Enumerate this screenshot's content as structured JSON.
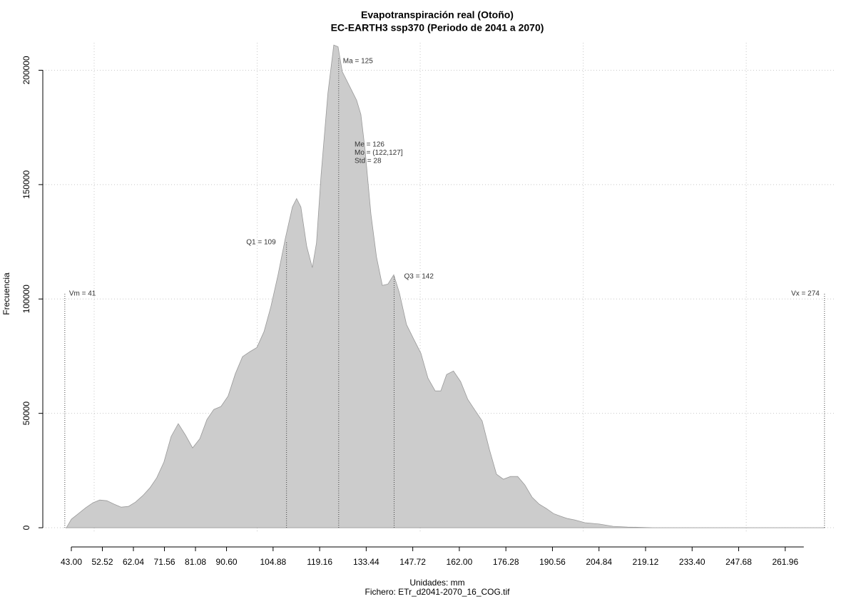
{
  "chart_data": {
    "type": "area",
    "title": "Evapotranspiración real (Otoño)",
    "subtitle": "EC-EARTH3 ssp370 (Periodo de 2041 a 2070)",
    "x_label": "Unidades: mm",
    "caption": "Fichero: ETr_d2041-2070_16_COG.tif",
    "y_label": "Frecuencia",
    "color": "#cccccc",
    "x": [
      41.5,
      43.0,
      45.2,
      47.4,
      49.6,
      51.7,
      53.9,
      56.1,
      58.3,
      60.5,
      62.7,
      64.9,
      67.1,
      69.2,
      71.4,
      73.6,
      75.8,
      78.0,
      80.2,
      82.4,
      84.6,
      86.7,
      88.9,
      91.1,
      93.3,
      95.5,
      97.7,
      99.9,
      102.1,
      104.2,
      106.4,
      108.6,
      110.8,
      112.1,
      113.4,
      115.2,
      116.9,
      118.2,
      119.6,
      121.7,
      123.5,
      124.8,
      126.1,
      128.3,
      130.5,
      131.8,
      133.1,
      134.9,
      136.6,
      138.4,
      140.1,
      141.9,
      143.6,
      145.8,
      148.0,
      150.2,
      152.4,
      154.6,
      156.3,
      158.1,
      160.2,
      162.4,
      164.6,
      166.8,
      169.0,
      171.2,
      173.4,
      175.5,
      177.7,
      179.9,
      182.1,
      184.3,
      186.5,
      188.7,
      190.9,
      193.1,
      195.2,
      197.4,
      200.5,
      204.9,
      209.2,
      213.6,
      222.4,
      239.9,
      274.0
    ],
    "values": [
      0,
      3700,
      6200,
      8700,
      10900,
      12100,
      11800,
      10300,
      9000,
      9300,
      11200,
      14000,
      17400,
      21800,
      28700,
      39900,
      45500,
      40500,
      34900,
      38900,
      47300,
      51700,
      53000,
      57600,
      67300,
      74800,
      76900,
      78800,
      85700,
      96600,
      110600,
      126200,
      140200,
      143900,
      140200,
      123000,
      113700,
      124600,
      154200,
      190000,
      211000,
      210300,
      199400,
      193100,
      186900,
      180700,
      165100,
      137100,
      118400,
      105900,
      106500,
      110600,
      102800,
      88800,
      82500,
      76300,
      65400,
      59800,
      59800,
      67000,
      68500,
      63900,
      56100,
      51400,
      46700,
      34300,
      23400,
      21200,
      22400,
      22400,
      18700,
      13400,
      10300,
      8400,
      6200,
      5000,
      4000,
      3400,
      2200,
      1600,
      600,
      300,
      0,
      0,
      0
    ],
    "xlim": [
      34.25,
      277.1
    ],
    "ylim": [
      -8400,
      212000
    ],
    "xticks": [
      {
        "value": 43,
        "label": "43.00"
      },
      52.52,
      62.04,
      71.56,
      81.08,
      {
        "value": 90.6,
        "label": "90.60"
      },
      104.88,
      119.16,
      133.44,
      147.72,
      {
        "value": 162,
        "label": "162.00"
      },
      176.28,
      190.56,
      204.84,
      219.12,
      {
        "value": 233.4,
        "label": "233.40"
      },
      247.68,
      261.96
    ],
    "yticks": [
      0,
      50000,
      100000,
      150000,
      200000
    ],
    "x_grid": [
      50,
      100,
      150,
      200,
      250
    ],
    "grid": true,
    "markers": [
      {
        "label": "Vm = 41",
        "value": 41
      },
      {
        "label": "Q1 = 109",
        "value": 109
      },
      {
        "label": "Ma = 125",
        "value": 125
      },
      {
        "label": "Q3 = 142",
        "value": 142
      },
      {
        "label": "Vx = 274",
        "value": 274
      }
    ],
    "stats": [
      "Me = 126",
      "Mo = (122,127]",
      "Std = 28"
    ]
  }
}
